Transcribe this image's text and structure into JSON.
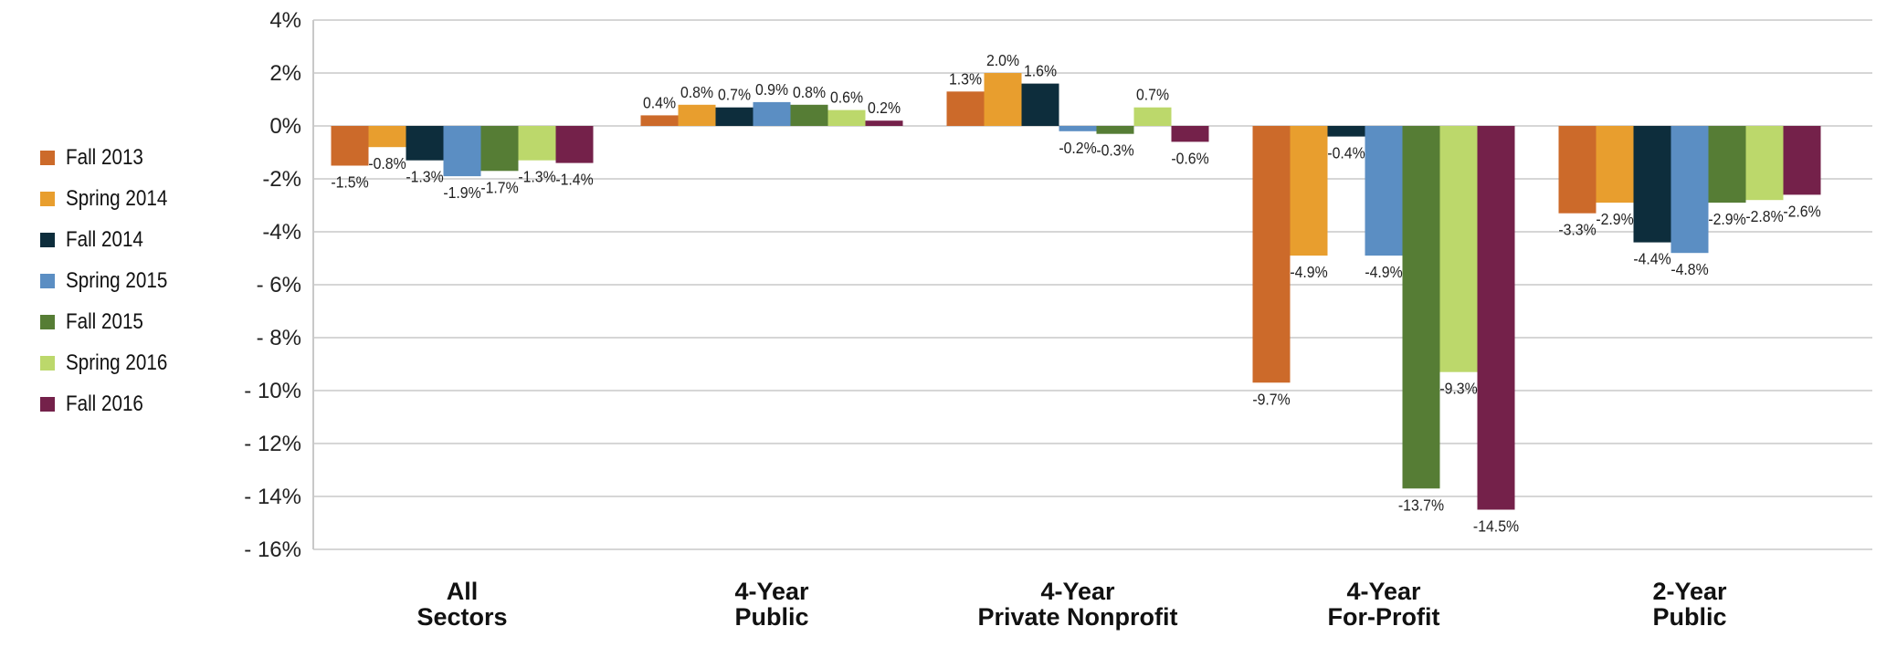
{
  "chart_data": {
    "type": "bar",
    "categories": [
      {
        "line1": "All",
        "line2": "Sectors"
      },
      {
        "line1": "4-Year",
        "line2": "Public"
      },
      {
        "line1": "4-Year",
        "line2": "Private Nonprofit"
      },
      {
        "line1": "4-Year",
        "line2": "For-Profit"
      },
      {
        "line1": "2-Year",
        "line2": "Public"
      }
    ],
    "series": [
      {
        "name": "Fall 2013",
        "color": "#cc6a2a",
        "values": [
          -1.5,
          0.4,
          1.3,
          -9.7,
          -3.3
        ]
      },
      {
        "name": "Spring 2014",
        "color": "#e89e2e",
        "values": [
          -0.8,
          0.8,
          2.0,
          -4.9,
          -2.9
        ]
      },
      {
        "name": "Fall 2014",
        "color": "#0d2d3c",
        "values": [
          -1.3,
          0.7,
          1.6,
          -0.4,
          -4.4
        ]
      },
      {
        "name": "Spring 2015",
        "color": "#5b8ec3",
        "values": [
          -1.9,
          0.9,
          -0.2,
          -4.9,
          -4.8
        ]
      },
      {
        "name": "Fall 2015",
        "color": "#567d35",
        "values": [
          -1.7,
          0.8,
          -0.3,
          -13.7,
          -2.9
        ]
      },
      {
        "name": "Spring 2016",
        "color": "#bcd86b",
        "values": [
          -1.3,
          0.6,
          0.7,
          -9.3,
          -2.8
        ]
      },
      {
        "name": "Fall 2016",
        "color": "#74214a",
        "values": [
          -1.4,
          0.2,
          -0.6,
          -14.5,
          -2.6
        ]
      }
    ],
    "y_ticks": [
      {
        "value": 4,
        "label": "4%"
      },
      {
        "value": 2,
        "label": "2%"
      },
      {
        "value": 0,
        "label": "0%"
      },
      {
        "value": -2,
        "label": "-2%"
      },
      {
        "value": -4,
        "label": "-4%"
      },
      {
        "value": -6,
        "label": "- 6%"
      },
      {
        "value": -8,
        "label": "- 8%"
      },
      {
        "value": -10,
        "label": "- 10%"
      },
      {
        "value": -12,
        "label": "- 12%"
      },
      {
        "value": -14,
        "label": "- 14%"
      },
      {
        "value": -16,
        "label": "- 16%"
      }
    ],
    "ylim": [
      -16,
      4
    ],
    "grid": true,
    "legend_position": "left",
    "title": "",
    "xlabel": "",
    "ylabel": ""
  }
}
